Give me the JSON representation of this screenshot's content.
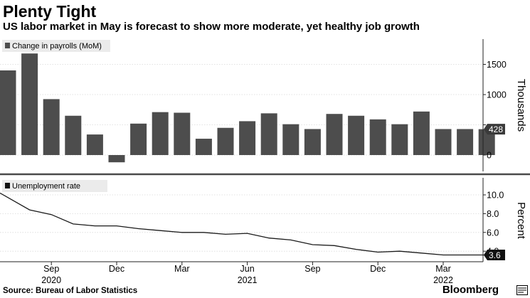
{
  "header": {
    "title": "Plenty Tight",
    "subtitle": "US labor market in May is forecast to show more moderate, yet healthy job growth"
  },
  "footer": {
    "source": "Source: Bureau of Labor Statistics",
    "brand": "Bloomberg"
  },
  "colors": {
    "bar": "#4d4d4d",
    "line": "#1a1a1a",
    "grid": "#d9d9d9",
    "divider": "#4a4a4a"
  },
  "chart_data": [
    {
      "type": "bar",
      "legend": "Change in payrolls (MoM)",
      "ylabel": "Thousands",
      "ylim": [
        -200,
        2000
      ],
      "yticks": [
        0,
        500,
        1000,
        1500
      ],
      "ytick_labels": [
        "0",
        "",
        "1000",
        "1500"
      ],
      "grid": true,
      "categories": [
        "2020-07",
        "2020-08",
        "2020-09",
        "2020-10",
        "2020-11",
        "2020-12",
        "2021-01",
        "2021-02",
        "2021-03",
        "2021-04",
        "2021-05",
        "2021-06",
        "2021-07",
        "2021-08",
        "2021-09",
        "2021-10",
        "2021-11",
        "2021-12",
        "2022-01",
        "2022-02",
        "2022-03",
        "2022-04",
        "2022-05"
      ],
      "values": [
        1400,
        1680,
        925,
        650,
        340,
        -120,
        520,
        710,
        700,
        270,
        450,
        560,
        690,
        510,
        430,
        680,
        650,
        590,
        510,
        720,
        430,
        430,
        428
      ],
      "last_value_label": "428"
    },
    {
      "type": "line",
      "legend": "Unemployment rate",
      "ylabel": "Percent",
      "ylim": [
        2.5,
        11.5
      ],
      "yticks": [
        4.0,
        6.0,
        8.0,
        10.0
      ],
      "ytick_labels": [
        "4.0",
        "6.0",
        "8.0",
        "10.0"
      ],
      "grid": true,
      "x": [
        "2020-07",
        "2020-08",
        "2020-09",
        "2020-10",
        "2020-11",
        "2020-12",
        "2021-01",
        "2021-02",
        "2021-03",
        "2021-04",
        "2021-05",
        "2021-06",
        "2021-07",
        "2021-08",
        "2021-09",
        "2021-10",
        "2021-11",
        "2021-12",
        "2022-01",
        "2022-02",
        "2022-03",
        "2022-04",
        "2022-05"
      ],
      "values": [
        10.2,
        8.4,
        7.9,
        6.9,
        6.7,
        6.7,
        6.4,
        6.2,
        6.0,
        6.0,
        5.8,
        5.9,
        5.4,
        5.2,
        4.7,
        4.6,
        4.2,
        3.9,
        4.0,
        3.8,
        3.6,
        3.6,
        3.6
      ],
      "last_value_label": "3.6"
    }
  ],
  "xaxis": {
    "month_labels": [
      {
        "month": "2020-09",
        "label": "Sep"
      },
      {
        "month": "2020-12",
        "label": "Dec"
      },
      {
        "month": "2021-03",
        "label": "Mar"
      },
      {
        "month": "2021-06",
        "label": "Jun"
      },
      {
        "month": "2021-09",
        "label": "Sep"
      },
      {
        "month": "2021-12",
        "label": "Dec"
      },
      {
        "month": "2022-03",
        "label": "Mar"
      }
    ],
    "year_labels": [
      {
        "month": "2020-09",
        "label": "2020"
      },
      {
        "month": "2021-06",
        "label": "2021"
      },
      {
        "month": "2022-03",
        "label": "2022"
      }
    ]
  }
}
